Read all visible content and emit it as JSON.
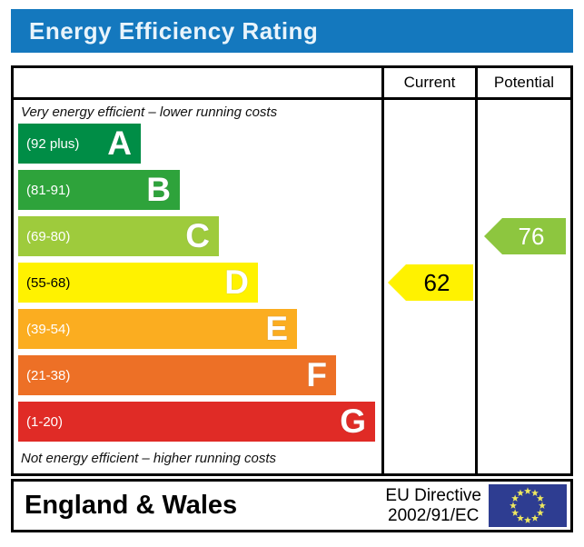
{
  "chart_data": {
    "type": "bar",
    "title": "Energy Efficiency Rating",
    "xlim": [
      1,
      100
    ],
    "bands": [
      {
        "letter": "A",
        "range": "(92 plus)",
        "min": 92,
        "max": 100,
        "color": "#008d46",
        "label_color": "#ffffff"
      },
      {
        "letter": "B",
        "range": "(81-91)",
        "min": 81,
        "max": 91,
        "color": "#2ea33b",
        "label_color": "#ffffff"
      },
      {
        "letter": "C",
        "range": "(69-80)",
        "min": 69,
        "max": 80,
        "color": "#9ecb3c",
        "label_color": "#ffffff"
      },
      {
        "letter": "D",
        "range": "(55-68)",
        "min": 55,
        "max": 68,
        "color": "#fff200",
        "label_color": "#000000"
      },
      {
        "letter": "E",
        "range": "(39-54)",
        "min": 39,
        "max": 54,
        "color": "#fbad20",
        "label_color": "#ffffff"
      },
      {
        "letter": "F",
        "range": "(21-38)",
        "min": 21,
        "max": 38,
        "color": "#ed7026",
        "label_color": "#ffffff"
      },
      {
        "letter": "G",
        "range": "(1-20)",
        "min": 1,
        "max": 20,
        "color": "#e02b26",
        "label_color": "#ffffff"
      }
    ],
    "series": [
      {
        "name": "Current",
        "value": 62,
        "band": "D",
        "arrow_color": "#fff200",
        "text_color": "#000000"
      },
      {
        "name": "Potential",
        "value": 76,
        "band": "C",
        "arrow_color": "#8dc63f",
        "text_color": "#ffffff"
      }
    ],
    "annotations": {
      "top": "Very energy efficient – lower running costs",
      "bottom": "Not energy efficient – higher running costs"
    },
    "legend_position": "none",
    "grid": false
  },
  "header": {
    "title_bg": "#1478be",
    "title_color": "#e9f4fb"
  },
  "footer": {
    "region": "England & Wales",
    "directive_line1": "EU Directive",
    "directive_line2": "2002/91/EC",
    "flag_bg": "#2e3d91",
    "flag_star_color": "#efe95f"
  }
}
